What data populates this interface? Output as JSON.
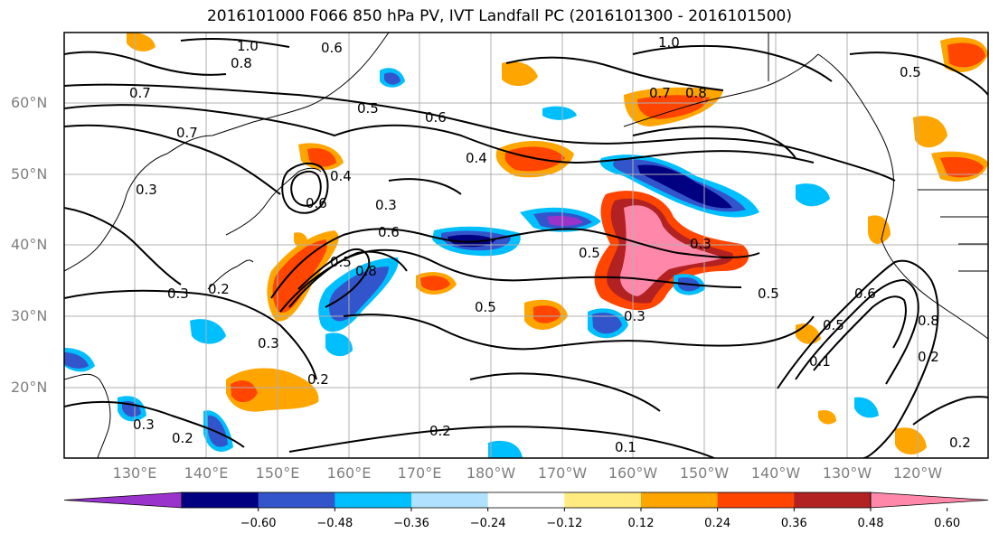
{
  "title": "2016101000 F066 850 hPa PV, IVT Landfall PC (2016101300 - 2016101500)",
  "lat_labels": [
    "60°N",
    "50°N",
    "40°N",
    "30°N",
    "20°N"
  ],
  "lon_labels": [
    "130°E",
    "140°E",
    "150°E",
    "160°E",
    "170°E",
    "180°W",
    "170°W",
    "160°W",
    "150°W",
    "140°W",
    "130°W",
    "120°W"
  ],
  "colorbar": {
    "ticks": [
      "−0.60",
      "−0.48",
      "−0.36",
      "−0.24",
      "−0.12",
      "0.12",
      "0.24",
      "0.36",
      "0.48",
      "0.60"
    ],
    "colors": [
      "#9933cc",
      "#000080",
      "#3355cc",
      "#00bfff",
      "#b0e2ff",
      "#ffffff",
      "#ffeb80",
      "#ffa500",
      "#ff4500",
      "#b22222",
      "#ff88aa"
    ]
  },
  "contour_labels": [
    "1.0",
    "0.8",
    "0.7",
    "0.7",
    "0.6",
    "0.5",
    "0.6",
    "0.4",
    "0.6",
    "0.3",
    "0.3",
    "0.6",
    "0.5",
    "0.5",
    "0.5",
    "0.3",
    "0.2",
    "0.3",
    "0.8",
    "0.5",
    "0.4",
    "0.3",
    "0.2",
    "0.2",
    "0.1",
    "0.5",
    "0.6",
    "0.8",
    "1.0",
    "0.5",
    "0.7",
    "0.8",
    "0.2",
    "0.1",
    "0.2",
    "0.3",
    "0.2",
    "0.3"
  ]
}
